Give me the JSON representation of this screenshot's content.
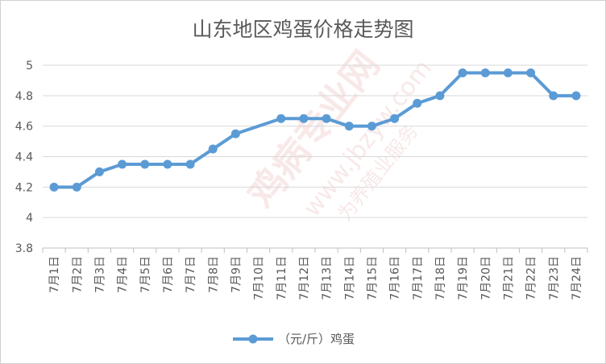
{
  "chart_data": {
    "type": "line",
    "title": "山东地区鸡蛋价格走势图",
    "xlabel": "",
    "ylabel": "",
    "categories": [
      "7月1日",
      "7月2日",
      "7月3日",
      "7月4日",
      "7月5日",
      "7月6日",
      "7月7日",
      "7月8日",
      "7月9日",
      "7月10日",
      "7月11日",
      "7月12日",
      "7月13日",
      "7月14日",
      "7月15日",
      "7月16日",
      "7月17日",
      "7月18日",
      "7月19日",
      "7月20日",
      "7月21日",
      "7月22日",
      "7月23日",
      "7月24日"
    ],
    "series": [
      {
        "name": "（元/斤）鸡蛋",
        "color": "#5b9bd5",
        "values": [
          4.2,
          4.2,
          4.3,
          4.35,
          4.35,
          4.35,
          4.35,
          4.45,
          4.55,
          null,
          4.65,
          4.65,
          4.65,
          4.6,
          4.6,
          4.65,
          4.75,
          4.8,
          4.95,
          4.95,
          4.95,
          4.95,
          4.8,
          4.8
        ]
      }
    ],
    "ylim": [
      3.8,
      5.0
    ],
    "yticks": [
      "3.8",
      "4",
      "4.2",
      "4.4",
      "4.6",
      "4.8",
      "5"
    ],
    "grid": true,
    "legend": "bottom"
  },
  "watermark": {
    "line1": "鸡病专业网",
    "line2": "www.jbzyw.com",
    "line3": "为养殖业服务"
  }
}
